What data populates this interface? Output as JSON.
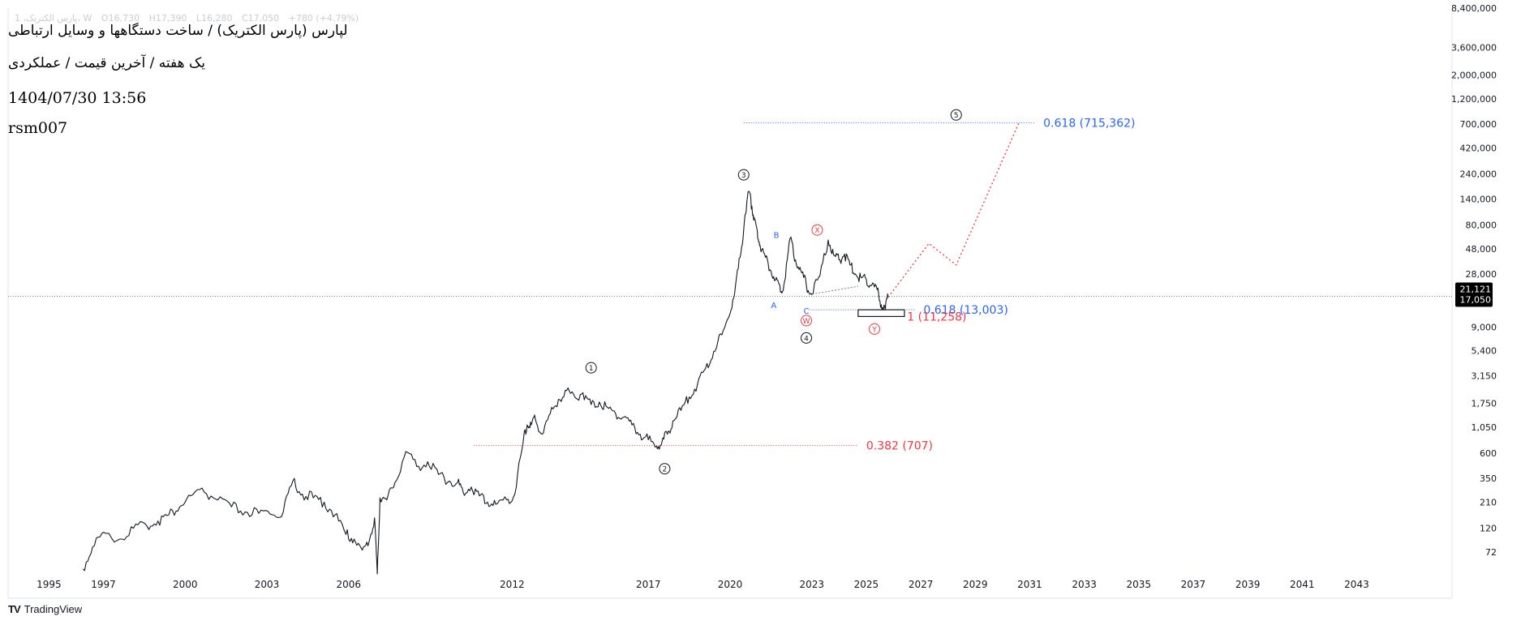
{
  "legend": {
    "symbol": "1 ،پارس الکتریک، W",
    "open": "O16,730",
    "high": "H17,390",
    "low": "L16,280",
    "close": "C17,050",
    "change": "+780 (+4.79%)"
  },
  "header": {
    "title": "لپارس (پارس الکتریک) / ساخت دستگاهها و وسایل ارتباطی",
    "subtitle": "یک هفته / آخرین قیمت / عملکردی",
    "datetime": "1404/07/30 13:56",
    "author": "rsm007"
  },
  "branding": {
    "logo": "TV",
    "name": "TradingView"
  },
  "colors": {
    "blue": "#2962ff",
    "red": "#f23645",
    "black": "#131722",
    "grid": "#787b86"
  },
  "chart_data": {
    "type": "line",
    "scale": "log",
    "ylim": [
      45,
      8400000
    ],
    "xlim": [
      1993.5,
      2046.5
    ],
    "y_ticks": [
      8400000,
      3600000,
      2000000,
      1200000,
      700000,
      420000,
      240000,
      140000,
      80000,
      48000,
      28000,
      9000,
      5400,
      3150,
      1750,
      1050,
      600,
      350,
      210,
      120,
      72
    ],
    "y_tick_labels": [
      "8,400,000",
      "3,600,000",
      "2,000,000",
      "1,200,000",
      "700,000",
      "420,000",
      "240,000",
      "140,000",
      "80,000",
      "48,000",
      "28,000",
      "9,000",
      "5,400",
      "3,150",
      "1,750",
      "1,050",
      "600",
      "350",
      "210",
      "120",
      "72"
    ],
    "x_ticks": [
      1995,
      1997,
      2000,
      2003,
      2006,
      2012,
      2017,
      2020,
      2023,
      2025,
      2027,
      2029,
      2031,
      2033,
      2035,
      2037,
      2039,
      2041,
      2043
    ],
    "x_tick_labels": [
      "1995",
      "1997",
      "2000",
      "2003",
      "2006",
      "2012",
      "2017",
      "2020",
      "2023",
      "2025",
      "2027",
      "2029",
      "2031",
      "2033",
      "2035",
      "2037",
      "2039",
      "2041",
      "2043"
    ],
    "last_price": {
      "value": 17050,
      "label_top": "21,121",
      "label_bottom": "17,050"
    },
    "series": [
      {
        "name": "price",
        "x": [
          1996.25,
          1996.6,
          1997.0,
          1997.6,
          1998.1,
          1998.6,
          1999.0,
          1999.4,
          1999.8,
          2000.2,
          2000.7,
          2001.2,
          2001.7,
          2002.2,
          2002.7,
          2003.2,
          2003.6,
          2003.95,
          2004.3,
          2004.7,
          2005.1,
          2005.5,
          2005.9,
          2006.2,
          2006.5,
          2006.75,
          2006.95,
          2007.05,
          2007.15,
          2007.4,
          2007.7,
          2008.1,
          2008.5,
          2008.9,
          2009.3,
          2009.7,
          2010.0,
          2010.2,
          2010.5,
          2010.8,
          2011.1,
          2011.4,
          2011.8,
          2012.1,
          2012.4,
          2012.55,
          2012.7,
          2012.85,
          2013.1,
          2013.4,
          2013.7,
          2014.0,
          2014.3,
          2014.6,
          2014.9,
          2015.2,
          2015.5,
          2015.8,
          2016.1,
          2016.4,
          2016.7,
          2017.0,
          2017.3,
          2017.5,
          2017.7,
          2017.9,
          2018.2,
          2018.5,
          2018.8,
          2019.1,
          2019.4,
          2019.7,
          2020.0,
          2020.2,
          2020.4,
          2020.55,
          2020.68,
          2020.8,
          2020.9,
          2021.0,
          2021.1,
          2021.3,
          2021.5,
          2021.7,
          2021.85,
          2022.0,
          2022.2,
          2022.4,
          2022.6,
          2022.8,
          2023.0,
          2023.3,
          2023.6,
          2023.8,
          2024.0,
          2024.2,
          2024.4,
          2024.6,
          2024.8,
          2025.0,
          2025.2,
          2025.4,
          2025.55,
          2025.7,
          2025.8
        ],
        "y": [
          50,
          80,
          110,
          95,
          120,
          125,
          140,
          160,
          190,
          240,
          260,
          220,
          190,
          170,
          165,
          160,
          170,
          330,
          250,
          230,
          210,
          160,
          105,
          95,
          75,
          90,
          150,
          45,
          230,
          220,
          320,
          620,
          450,
          500,
          380,
          330,
          320,
          260,
          290,
          240,
          210,
          200,
          220,
          250,
          750,
          1100,
          1100,
          1250,
          900,
          1400,
          1900,
          2300,
          2000,
          2200,
          1700,
          1800,
          1600,
          1400,
          1300,
          1100,
          900,
          800,
          700,
          760,
          900,
          1200,
          1500,
          2000,
          2600,
          3700,
          5300,
          7600,
          12000,
          22000,
          44000,
          100000,
          165000,
          120000,
          90000,
          70000,
          52000,
          40000,
          30000,
          26000,
          19000,
          24000,
          60000,
          38000,
          30000,
          22000,
          18000,
          27000,
          58000,
          42000,
          38000,
          43000,
          34000,
          28000,
          26000,
          25000,
          22000,
          20000,
          14500,
          13000,
          17050
        ]
      },
      {
        "name": "projection",
        "x": [
          2025.8,
          2027.3,
          2028.3,
          2030.6
        ],
        "y": [
          17050,
          54000,
          34000,
          715362
        ]
      },
      {
        "name": "connector",
        "x": [
          2022.9,
          2024.7
        ],
        "y": [
          18000,
          21500
        ]
      }
    ],
    "fib_levels": [
      {
        "label": "0.618 (715,362)",
        "value": 715362,
        "x_start": 2020.5,
        "x_end": 2031.2,
        "color": "blue"
      },
      {
        "label": "0.618 (13,003)",
        "value": 13003,
        "x_start": 2022.9,
        "x_end": 2026.8,
        "color": "blue"
      },
      {
        "label": "1 (11,258)",
        "value": 11258,
        "x_start": 2025.5,
        "x_end": 2026.2,
        "color": "red"
      },
      {
        "label": "0.382 (707)",
        "value": 707,
        "x_start": 2010.6,
        "x_end": 2024.7,
        "color": "red"
      }
    ],
    "target_box": {
      "x_start": 2024.7,
      "x_end": 2026.4,
      "y_low": 11258,
      "y_high": 13003
    },
    "wave_labels": [
      {
        "label": "1",
        "x": 2014.9,
        "y": 3750,
        "style": "circle",
        "color": "black"
      },
      {
        "label": "2",
        "x": 2017.6,
        "y": 430,
        "style": "circle",
        "color": "black"
      },
      {
        "label": "3",
        "x": 2020.5,
        "y": 235000,
        "style": "circle",
        "color": "black"
      },
      {
        "label": "4",
        "x": 2022.8,
        "y": 7100,
        "style": "circle",
        "color": "black"
      },
      {
        "label": "5",
        "x": 2028.3,
        "y": 850000,
        "style": "circle",
        "color": "black"
      },
      {
        "label": "A",
        "x": 2021.6,
        "y": 14500,
        "style": "plain",
        "color": "blue"
      },
      {
        "label": "B",
        "x": 2021.7,
        "y": 65000,
        "style": "plain",
        "color": "blue"
      },
      {
        "label": "C",
        "x": 2022.8,
        "y": 12800,
        "style": "plain",
        "color": "blue"
      },
      {
        "label": "W",
        "x": 2022.8,
        "y": 10300,
        "style": "circle",
        "color": "red"
      },
      {
        "label": "X",
        "x": 2023.2,
        "y": 72000,
        "style": "circle",
        "color": "red"
      },
      {
        "label": "Y",
        "x": 2025.3,
        "y": 8600,
        "style": "circle",
        "color": "red"
      }
    ]
  }
}
